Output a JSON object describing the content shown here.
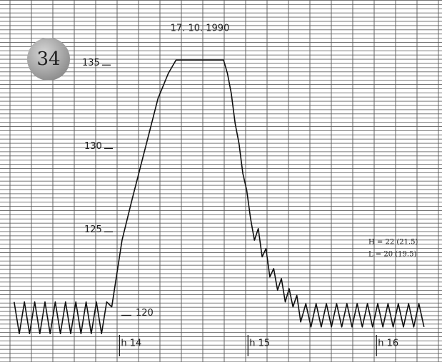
{
  "chart_data": {
    "type": "line",
    "badge": "34",
    "title": "17. 10. 1990",
    "annotations": [
      "H = 22 (21.5)",
      "L = 20 (19.5)"
    ],
    "xlim": [
      13.07,
      16.51
    ],
    "ylim": [
      117.2,
      138.9
    ],
    "xticks": [
      {
        "value": 14,
        "label": "h 14"
      },
      {
        "value": 15,
        "label": "h 15"
      },
      {
        "value": 16,
        "label": "h 16"
      }
    ],
    "yticks": [
      120,
      125,
      130,
      135
    ],
    "color": "#111111",
    "x": [
      13.18,
      13.22,
      13.26,
      13.3,
      13.34,
      13.38,
      13.42,
      13.46,
      13.5,
      13.54,
      13.58,
      13.62,
      13.66,
      13.7,
      13.74,
      13.78,
      13.82,
      13.86,
      13.9,
      13.94,
      13.98,
      14.02,
      14.1,
      14.2,
      14.3,
      14.38,
      14.44,
      14.81,
      14.84,
      14.87,
      14.9,
      14.93,
      14.96,
      14.99,
      15.02,
      15.05,
      15.08,
      15.11,
      15.14,
      15.17,
      15.2,
      15.23,
      15.26,
      15.29,
      15.32,
      15.35,
      15.38,
      15.41,
      15.45,
      15.49,
      15.53,
      15.57,
      15.61,
      15.65,
      15.69,
      15.73,
      15.77,
      15.81,
      15.85,
      15.89,
      15.93,
      15.97,
      16.01,
      16.05,
      16.09,
      16.13,
      16.17,
      16.21,
      16.25,
      16.29,
      16.33,
      16.37
    ],
    "values": [
      120.8,
      118.9,
      120.8,
      118.9,
      120.8,
      118.9,
      120.8,
      118.9,
      120.8,
      118.9,
      120.8,
      118.9,
      120.8,
      118.9,
      120.8,
      118.9,
      120.8,
      118.9,
      120.8,
      120.5,
      122.5,
      124.5,
      127,
      130,
      133,
      134.5,
      135.3,
      135.3,
      134.5,
      133.3,
      131.5,
      130.3,
      128.5,
      127.5,
      125.8,
      124.5,
      125.2,
      123.5,
      124,
      122.3,
      122.8,
      121.5,
      122.2,
      120.8,
      121.6,
      120.5,
      121.2,
      119.6,
      120.7,
      119.3,
      120.7,
      119.3,
      120.7,
      119.3,
      120.7,
      119.3,
      120.7,
      119.3,
      120.7,
      119.3,
      120.7,
      119.3,
      120.7,
      119.3,
      120.7,
      119.3,
      120.7,
      119.3,
      120.7,
      119.3,
      120.7,
      119.3
    ]
  }
}
